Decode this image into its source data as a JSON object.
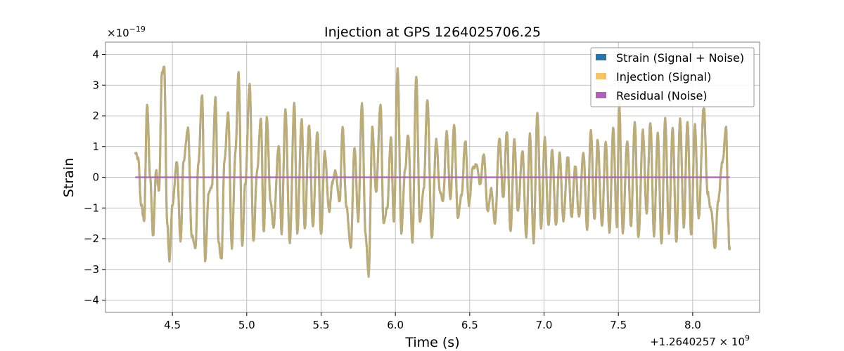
{
  "chart_data": {
    "type": "line",
    "title": "Injection at GPS 1264025706.25",
    "xlabel": "Time (s)",
    "ylabel": "Strain",
    "x_offset_label": "+1.2640257 × 10",
    "x_offset_exponent": "9",
    "y_scale_label": "×10",
    "y_scale_exponent": "−19",
    "xlim": [
      4.05,
      8.45
    ],
    "ylim": [
      -4.4,
      4.4
    ],
    "x_ticks": [
      4.5,
      5.0,
      5.5,
      6.0,
      6.5,
      7.0,
      7.5,
      8.0
    ],
    "x_tick_labels": [
      "4.5",
      "5.0",
      "5.5",
      "6.0",
      "6.5",
      "7.0",
      "7.5",
      "8.0"
    ],
    "y_ticks": [
      -4,
      -3,
      -2,
      -1,
      0,
      1,
      2,
      3,
      4
    ],
    "y_tick_labels": [
      "−4",
      "−3",
      "−2",
      "−1",
      "0",
      "1",
      "2",
      "3",
      "4"
    ],
    "grid": true,
    "legend_position": "top-right",
    "series": [
      {
        "name": "Strain (Signal + Noise)",
        "color": "#1f77b4",
        "keypoints": [
          [
            4.25,
            0.8
          ],
          [
            4.27,
            0.6
          ],
          [
            4.29,
            -0.9
          ],
          [
            4.31,
            -1.4
          ],
          [
            4.33,
            2.4
          ],
          [
            4.35,
            0.0
          ],
          [
            4.37,
            -1.9
          ],
          [
            4.39,
            0.2
          ],
          [
            4.41,
            -0.4
          ],
          [
            4.43,
            3.4
          ],
          [
            4.445,
            3.6
          ],
          [
            4.465,
            -1.5
          ],
          [
            4.48,
            -2.7
          ],
          [
            4.5,
            -0.9
          ],
          [
            4.53,
            0.5
          ],
          [
            4.555,
            -2.1
          ],
          [
            4.575,
            0.5
          ],
          [
            4.605,
            1.6
          ],
          [
            4.63,
            -1.9
          ],
          [
            4.655,
            -2.3
          ],
          [
            4.675,
            0.5
          ],
          [
            4.7,
            2.7
          ],
          [
            4.72,
            -2.7
          ],
          [
            4.745,
            -0.5
          ],
          [
            4.765,
            -0.3
          ],
          [
            4.79,
            2.6
          ],
          [
            4.81,
            -2.1
          ],
          [
            4.83,
            -2.7
          ],
          [
            4.85,
            0.5
          ],
          [
            4.875,
            2.1
          ],
          [
            4.9,
            -2.3
          ],
          [
            4.925,
            0.9
          ],
          [
            4.945,
            3.4
          ],
          [
            4.97,
            -2.2
          ],
          [
            4.99,
            -0.2
          ],
          [
            5.02,
            3.0
          ],
          [
            5.045,
            -2.1
          ],
          [
            5.07,
            0.2
          ],
          [
            5.095,
            1.9
          ],
          [
            5.115,
            -1.8
          ],
          [
            5.135,
            1.9
          ],
          [
            5.16,
            -0.8
          ],
          [
            5.18,
            -1.6
          ],
          [
            5.215,
            1.0
          ],
          [
            5.235,
            -1.8
          ],
          [
            5.26,
            2.2
          ],
          [
            5.29,
            -2.1
          ],
          [
            5.32,
            2.4
          ],
          [
            5.34,
            -1.8
          ],
          [
            5.37,
            1.9
          ],
          [
            5.39,
            -1.7
          ],
          [
            5.42,
            1.7
          ],
          [
            5.445,
            -1.6
          ],
          [
            5.475,
            1.5
          ],
          [
            5.5,
            -1.9
          ],
          [
            5.525,
            0.8
          ],
          [
            5.555,
            -1.1
          ],
          [
            5.575,
            -0.2
          ],
          [
            5.595,
            0.2
          ],
          [
            5.625,
            -0.8
          ],
          [
            5.645,
            1.6
          ],
          [
            5.67,
            -0.9
          ],
          [
            5.7,
            -2.3
          ],
          [
            5.725,
            1.0
          ],
          [
            5.75,
            -1.4
          ],
          [
            5.775,
            2.4
          ],
          [
            5.8,
            -1.9
          ],
          [
            5.82,
            -3.2
          ],
          [
            5.845,
            1.6
          ],
          [
            5.87,
            -0.5
          ],
          [
            5.9,
            2.4
          ],
          [
            5.92,
            -1.5
          ],
          [
            5.945,
            -1.0
          ],
          [
            5.97,
            1.3
          ],
          [
            5.99,
            -1.5
          ],
          [
            6.015,
            3.5
          ],
          [
            6.04,
            -1.8
          ],
          [
            6.065,
            0.2
          ],
          [
            6.085,
            1.4
          ],
          [
            6.115,
            -2.1
          ],
          [
            6.14,
            3.3
          ],
          [
            6.165,
            -1.5
          ],
          [
            6.19,
            -0.4
          ],
          [
            6.215,
            2.5
          ],
          [
            6.245,
            -2.0
          ],
          [
            6.275,
            1.2
          ],
          [
            6.3,
            -0.5
          ],
          [
            6.32,
            -0.8
          ],
          [
            6.345,
            1.5
          ],
          [
            6.37,
            -0.7
          ],
          [
            6.395,
            1.7
          ],
          [
            6.42,
            -1.3
          ],
          [
            6.445,
            -0.6
          ],
          [
            6.47,
            1.2
          ],
          [
            6.495,
            -0.9
          ],
          [
            6.52,
            0.3
          ],
          [
            6.545,
            0.4
          ],
          [
            6.57,
            -0.2
          ],
          [
            6.595,
            0.8
          ],
          [
            6.62,
            -1.1
          ],
          [
            6.645,
            -0.4
          ],
          [
            6.67,
            -1.5
          ],
          [
            6.7,
            1.3
          ],
          [
            6.725,
            -0.7
          ],
          [
            6.75,
            1.5
          ],
          [
            6.775,
            -1.8
          ],
          [
            6.8,
            1.2
          ],
          [
            6.825,
            -1.1
          ],
          [
            6.855,
            0.9
          ],
          [
            6.88,
            -1.9
          ],
          [
            6.905,
            1.4
          ],
          [
            6.93,
            -2.1
          ],
          [
            6.955,
            2.1
          ],
          [
            6.98,
            -1.7
          ],
          [
            7.005,
            1.3
          ],
          [
            7.03,
            -1.6
          ],
          [
            7.055,
            0.9
          ],
          [
            7.08,
            -1.6
          ],
          [
            7.105,
            0.8
          ],
          [
            7.13,
            -1.4
          ],
          [
            7.16,
            0.7
          ],
          [
            7.185,
            -1.3
          ],
          [
            7.21,
            0.4
          ],
          [
            7.235,
            -1.3
          ],
          [
            7.265,
            0.8
          ],
          [
            7.29,
            -1.7
          ],
          [
            7.315,
            1.5
          ],
          [
            7.34,
            -1.4
          ],
          [
            7.36,
            1.2
          ],
          [
            7.39,
            -1.6
          ],
          [
            7.415,
            1.2
          ],
          [
            7.44,
            -1.8
          ],
          [
            7.465,
            1.6
          ],
          [
            7.49,
            -1.6
          ],
          [
            7.505,
            2.4
          ],
          [
            7.53,
            -1.8
          ],
          [
            7.56,
            1.2
          ],
          [
            7.585,
            -1.6
          ],
          [
            7.61,
            1.8
          ],
          [
            7.635,
            -2.0
          ],
          [
            7.665,
            1.5
          ],
          [
            7.69,
            -1.2
          ],
          [
            7.715,
            1.8
          ],
          [
            7.74,
            -1.9
          ],
          [
            7.765,
            1.5
          ],
          [
            7.79,
            -2.2
          ],
          [
            7.815,
            1.9
          ],
          [
            7.84,
            -1.8
          ],
          [
            7.865,
            1.6
          ],
          [
            7.89,
            -2.1
          ],
          [
            7.915,
            1.9
          ],
          [
            7.94,
            -1.6
          ],
          [
            7.965,
            1.8
          ],
          [
            7.99,
            -1.9
          ],
          [
            8.015,
            1.7
          ],
          [
            8.04,
            -1.3
          ],
          [
            8.075,
            2.3
          ],
          [
            8.1,
            -0.5
          ],
          [
            8.125,
            -1.1
          ],
          [
            8.15,
            -2.3
          ],
          [
            8.17,
            -0.8
          ],
          [
            8.2,
            0.5
          ],
          [
            8.225,
            1.6
          ],
          [
            8.24,
            -1.5
          ],
          [
            8.245,
            -2.3
          ],
          [
            8.25,
            -2.3
          ]
        ]
      },
      {
        "name": "Injection (Signal)",
        "color": "#fbc15e",
        "keypoints": [
          [
            4.25,
            0.0
          ],
          [
            8.25,
            0.0
          ]
        ]
      },
      {
        "name": "Residual (Noise)",
        "color": "#b15fbb",
        "keypoints": [
          [
            4.25,
            0.0
          ],
          [
            8.25,
            0.0
          ]
        ]
      }
    ]
  }
}
